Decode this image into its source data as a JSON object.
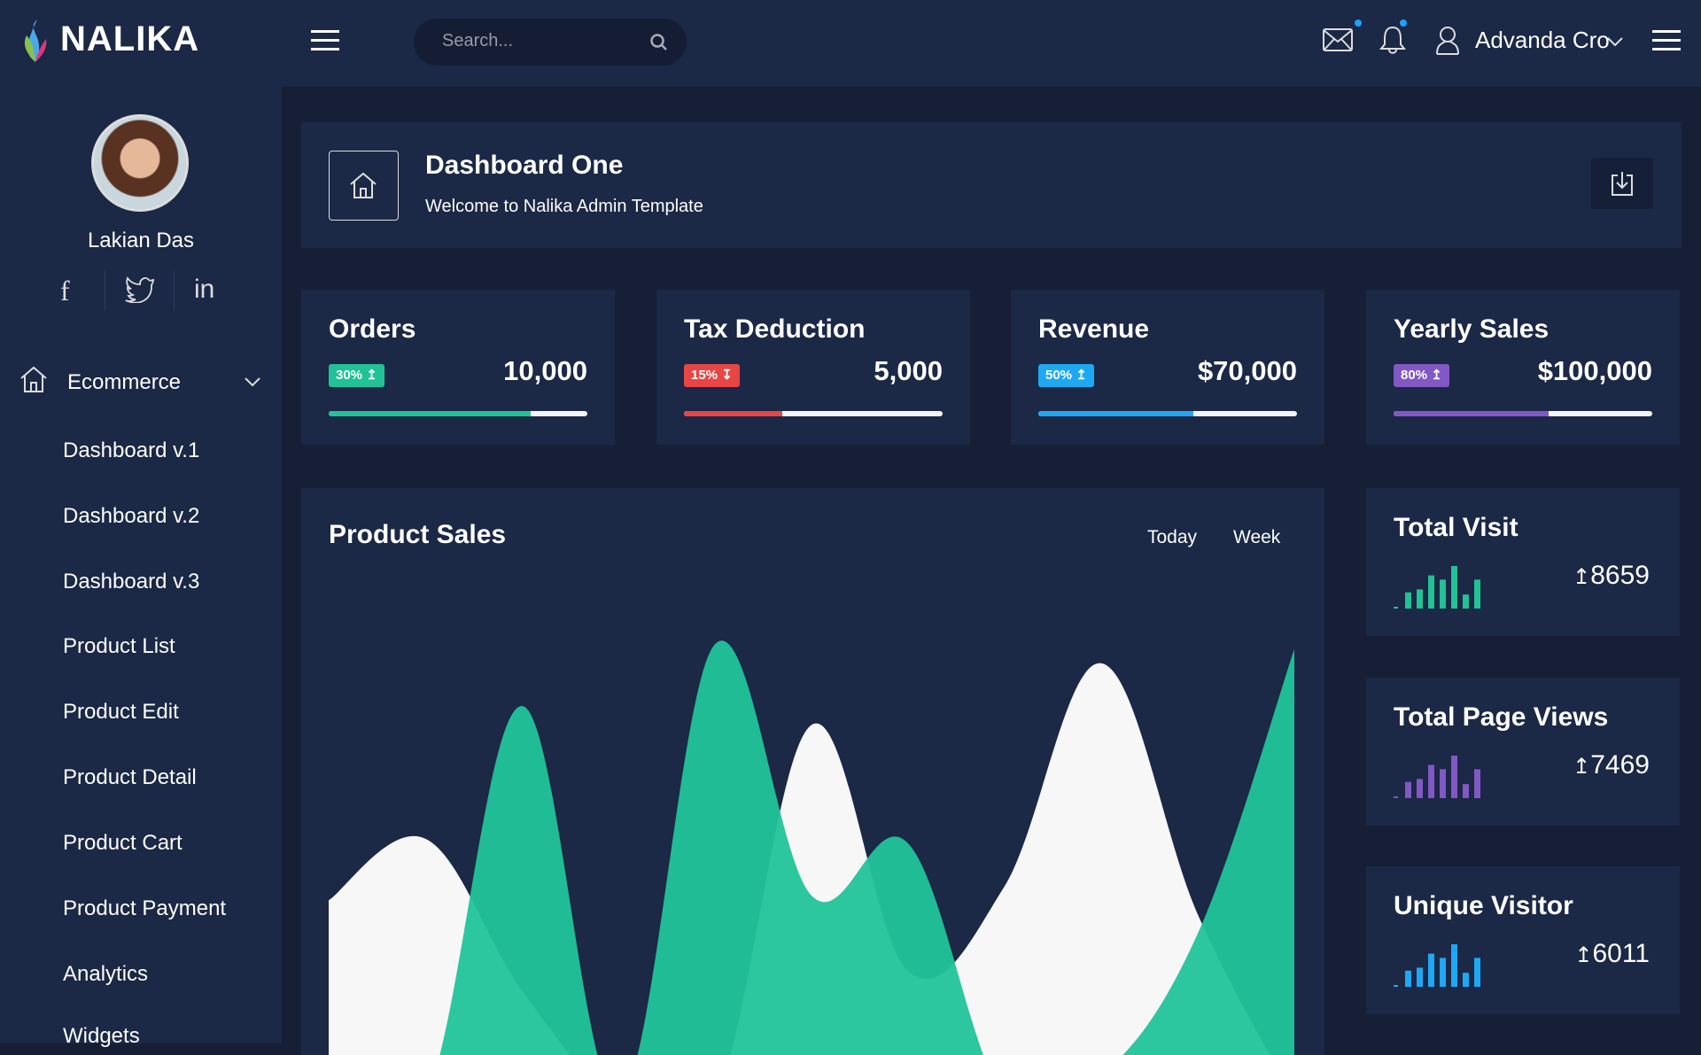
{
  "brand": {
    "name": "NALIKA"
  },
  "search": {
    "placeholder": "Search..."
  },
  "header": {
    "user_name": "Advanda Cro",
    "mail_icon": "mail-icon",
    "bell_icon": "bell-icon"
  },
  "profile": {
    "name": "Lakian Das",
    "socials": [
      "facebook",
      "twitter",
      "linkedin"
    ]
  },
  "sidebar": {
    "group": "Ecommerce",
    "items": [
      "Dashboard v.1",
      "Dashboard v.2",
      "Dashboard v.3",
      "Product List",
      "Product Edit",
      "Product Detail",
      "Product Cart",
      "Product Payment",
      "Analytics",
      "Widgets"
    ]
  },
  "page": {
    "title": "Dashboard One",
    "subtitle": "Welcome to Nalika Admin Template"
  },
  "stats": [
    {
      "title": "Orders",
      "badge": "30% ↥",
      "value": "10,000",
      "progress": 78,
      "color": "#21c295"
    },
    {
      "title": "Tax Deduction",
      "badge": "15% ↧",
      "value": "5,000",
      "progress": 38,
      "color": "#e84545"
    },
    {
      "title": "Revenue",
      "badge": "50% ↥",
      "value": "$70,000",
      "progress": 60,
      "color": "#1ea8f4"
    },
    {
      "title": "Yearly Sales",
      "badge": "80% ↥",
      "value": "$100,000",
      "progress": 60,
      "color": "#8258c4"
    }
  ],
  "product_sales": {
    "title": "Product Sales",
    "tabs": [
      "Today",
      "Week"
    ]
  },
  "mini": [
    {
      "title": "Total Visit",
      "value": "8659",
      "color": "#21c295",
      "bars": [
        2,
        38,
        45,
        78,
        68,
        100,
        33,
        68
      ]
    },
    {
      "title": "Total Page Views",
      "value": "7469",
      "color": "#8258c4",
      "bars": [
        2,
        38,
        45,
        78,
        68,
        100,
        33,
        68
      ]
    },
    {
      "title": "Unique Visitor",
      "value": "6011",
      "color": "#1ea8f4",
      "bars": [
        2,
        38,
        45,
        78,
        68,
        100,
        33,
        68
      ]
    }
  ],
  "chart_data": {
    "type": "area",
    "x": [
      0,
      1,
      2,
      3,
      4,
      5,
      6,
      7,
      8,
      9,
      10
    ],
    "ylim": [
      0,
      100
    ],
    "series": [
      {
        "color": "#f7f7f7",
        "values": [
          42,
          55,
          23,
          0,
          0,
          79,
          27,
          45,
          92,
          39,
          0
        ]
      },
      {
        "color": "#21c49a",
        "values": [
          0,
          0,
          83,
          0,
          96,
          43,
          54,
          0,
          0,
          0,
          0
        ]
      },
      {
        "color": "#21c49a",
        "values": [
          0,
          0,
          0,
          0,
          0,
          0,
          0,
          0,
          5,
          35,
          95
        ]
      }
    ]
  }
}
